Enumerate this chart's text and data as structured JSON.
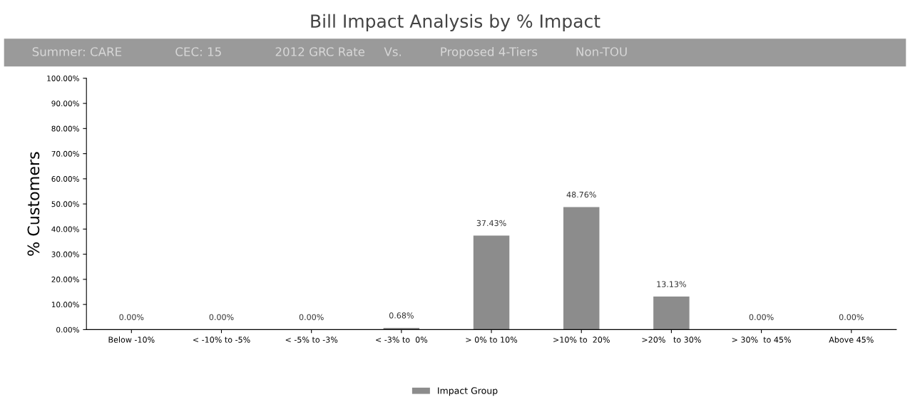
{
  "chart_data": {
    "type": "bar",
    "title": "Bill Impact Analysis by % Impact",
    "subtitle": "Summer: CARE              CEC: 15              2012 GRC Rate     Vs.          Proposed 4-Tiers          Non-TOU",
    "ylabel": "% Customers",
    "categories": [
      "Below -10%",
      "< -10% to -5%",
      "< -5% to -3%",
      "< -3% to  0%",
      "> 0% to 10%",
      ">10% to  20%",
      ">20%   to 30%",
      "> 30%  to 45%",
      "Above 45%"
    ],
    "series": [
      {
        "name": "Impact Group",
        "color": "#8c8c8c",
        "values": [
          0,
          0,
          0,
          0.68,
          37.43,
          48.76,
          13.13,
          0,
          0
        ],
        "value_labels": [
          "0.00%",
          "0.00%",
          "0.00%",
          "0.68%",
          "37.43%",
          "48.76%",
          "13.13%",
          "0.00%",
          "0.00%"
        ]
      }
    ],
    "ylim": [
      0,
      100
    ],
    "yticks": [
      {
        "value": 0,
        "label": "0.00%"
      },
      {
        "value": 10,
        "label": "10.00%"
      },
      {
        "value": 20,
        "label": "20.00%"
      },
      {
        "value": 30,
        "label": "30.00%"
      },
      {
        "value": 40,
        "label": "40.00%"
      },
      {
        "value": 50,
        "label": "50.00%"
      },
      {
        "value": 60,
        "label": "60.00%"
      },
      {
        "value": 70,
        "label": "70.00%"
      },
      {
        "value": 80,
        "label": "80.00%"
      },
      {
        "value": 90,
        "label": "90.00%"
      },
      {
        "value": 100,
        "label": "100.00%"
      }
    ],
    "grid": false,
    "legend": "bottom"
  }
}
